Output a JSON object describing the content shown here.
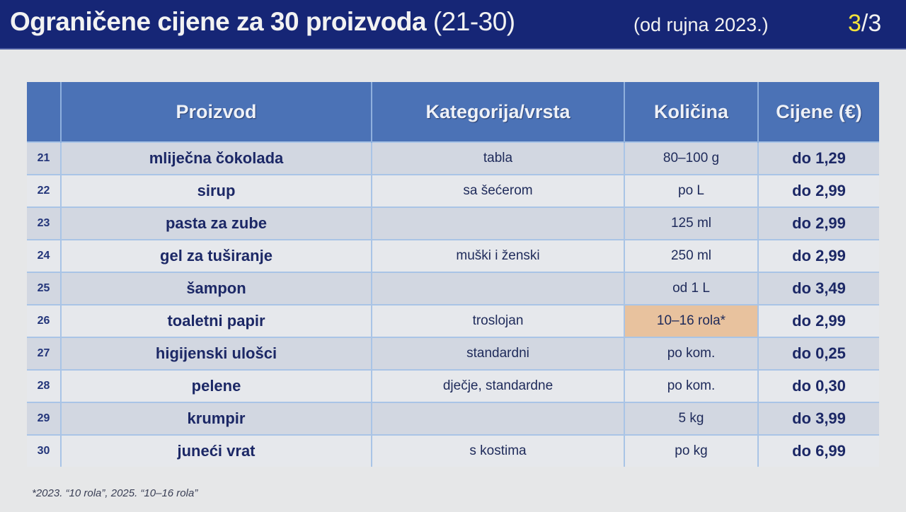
{
  "title": {
    "main": "Ograničene cijene za 30 proizvoda",
    "range": "(21-30)",
    "subtitle": "(od rujna 2023.)",
    "page_current": "3",
    "page_total": "/3"
  },
  "table": {
    "headers": [
      "",
      "Proizvod",
      "Kategorija/vrsta",
      "Količina",
      "Cijene (€)"
    ],
    "rows": [
      {
        "num": "21",
        "product": "mliječna čokolada",
        "category": "tabla",
        "quantity": "80–100 g",
        "price": "do 1,29"
      },
      {
        "num": "22",
        "product": "sirup",
        "category": "sa šećerom",
        "quantity": "po L",
        "price": "do 2,99"
      },
      {
        "num": "23",
        "product": "pasta za zube",
        "category": "",
        "quantity": "125 ml",
        "price": "do 2,99"
      },
      {
        "num": "24",
        "product": "gel za tuširanje",
        "category": "muški i ženski",
        "quantity": "250 ml",
        "price": "do 2,99"
      },
      {
        "num": "25",
        "product": "šampon",
        "category": "",
        "quantity": "od 1 L",
        "price": "do 3,49"
      },
      {
        "num": "26",
        "product": "toaletni papir",
        "category": "troslojan",
        "quantity": "10–16 rola*",
        "price": "do 2,99",
        "highlight": true
      },
      {
        "num": "27",
        "product": "higijenski ulošci",
        "category": "standardni",
        "quantity": "po kom.",
        "price": "do 0,25"
      },
      {
        "num": "28",
        "product": "pelene",
        "category": "dječje, standardne",
        "quantity": "po kom.",
        "price": "do 0,30"
      },
      {
        "num": "29",
        "product": "krumpir",
        "category": "",
        "quantity": "5 kg",
        "price": "do 3,99"
      },
      {
        "num": "30",
        "product": "juneći vrat",
        "category": "s kostima",
        "quantity": "po kg",
        "price": "do 6,99"
      }
    ]
  },
  "footnote": "*2023. “10 rola”, 2025. “10–16 rola”",
  "colors": {
    "title_bar": "#162676",
    "header": "#4b72b6",
    "highlight": "#e8c29e",
    "page_accent": "#f2e23a"
  }
}
